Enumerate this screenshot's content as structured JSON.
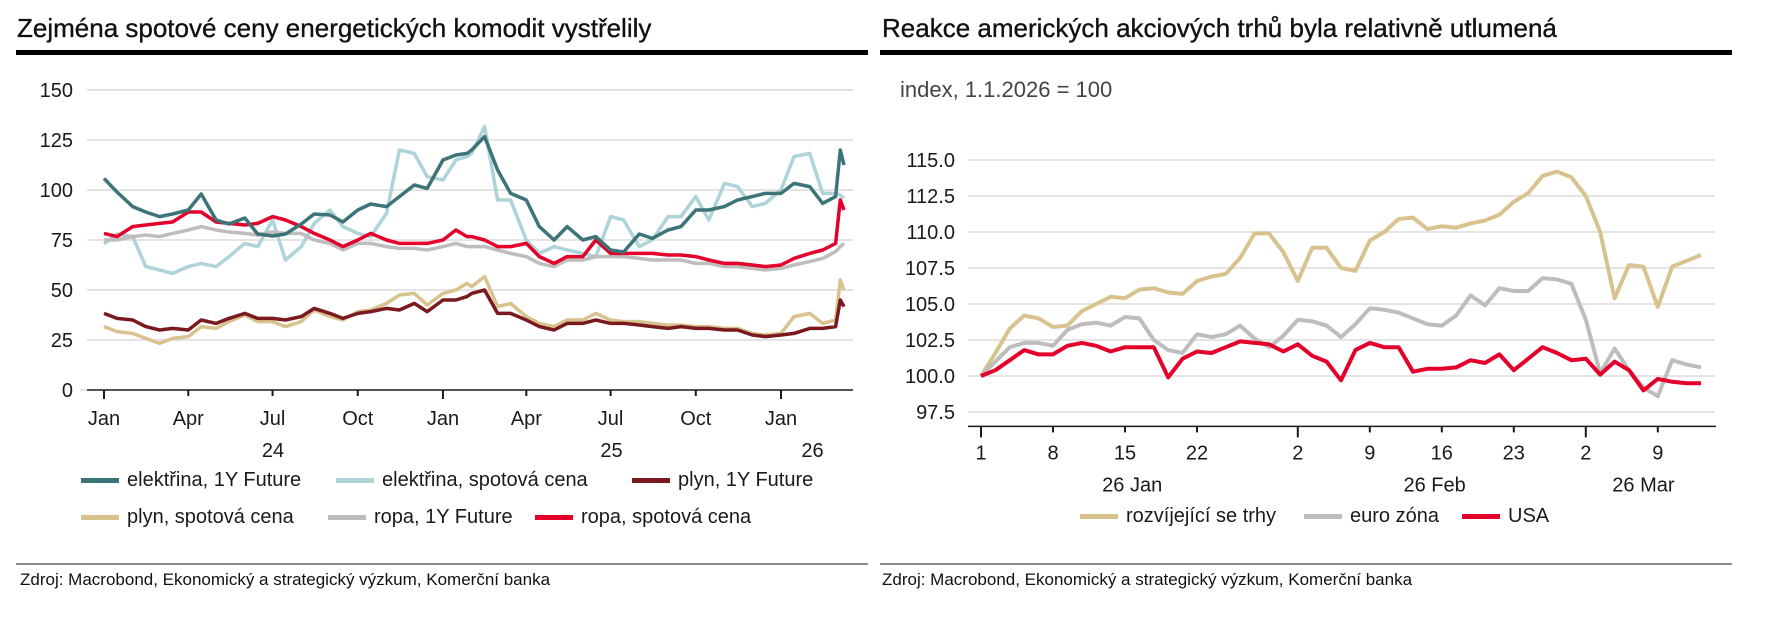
{
  "left": {
    "title": "Zejména spotové ceny energetických komodit vystřelily",
    "source": "Zdroj: Macrobond, Ekonomický a strategický výzkum, Komerční banka"
  },
  "right": {
    "title": "Reakce amerických akciových trhů byla relativně utlumená",
    "subtitle": "index, 1.1.2026 = 100",
    "source": "Zdroj: Macrobond, Ekonomický a strategický výzkum, Komerční banka"
  },
  "chart_data": [
    {
      "type": "line",
      "title": "Zejména spotové ceny energetických komodit vystřelily",
      "ylim": [
        0,
        150
      ],
      "yticks": [
        0,
        25,
        50,
        75,
        100,
        125,
        150
      ],
      "grid": true,
      "legend_placement": "bottom",
      "xticks": [
        {
          "date": "2024-01-01",
          "label": "Jan"
        },
        {
          "date": "2024-04-01",
          "label": "Apr"
        },
        {
          "date": "2024-07-01",
          "label": "Jul"
        },
        {
          "date": "2024-10-01",
          "label": "Oct"
        },
        {
          "date": "2025-01-01",
          "label": "Jan"
        },
        {
          "date": "2025-04-01",
          "label": "Apr"
        },
        {
          "date": "2025-07-01",
          "label": "Jul"
        },
        {
          "date": "2025-10-01",
          "label": "Oct"
        },
        {
          "date": "2026-01-01",
          "label": "Jan"
        }
      ],
      "year_labels": [
        {
          "year": 2024,
          "label": "24"
        },
        {
          "year": 2025,
          "label": "25"
        },
        {
          "year": 2026,
          "label": "26"
        }
      ],
      "x": [
        "2024-01-01",
        "2024-01-15",
        "2024-02-01",
        "2024-02-15",
        "2024-03-01",
        "2024-03-15",
        "2024-04-01",
        "2024-04-15",
        "2024-05-01",
        "2024-05-15",
        "2024-06-01",
        "2024-06-15",
        "2024-07-01",
        "2024-07-15",
        "2024-08-01",
        "2024-08-15",
        "2024-09-01",
        "2024-09-15",
        "2024-10-01",
        "2024-10-15",
        "2024-11-01",
        "2024-11-15",
        "2024-12-01",
        "2024-12-15",
        "2025-01-01",
        "2025-01-15",
        "2025-01-27",
        "2025-02-01",
        "2025-02-15",
        "2025-03-01",
        "2025-03-15",
        "2025-04-01",
        "2025-04-15",
        "2025-05-01",
        "2025-05-15",
        "2025-06-01",
        "2025-06-15",
        "2025-07-01",
        "2025-07-15",
        "2025-08-01",
        "2025-08-15",
        "2025-09-01",
        "2025-09-15",
        "2025-10-01",
        "2025-10-15",
        "2025-11-01",
        "2025-11-15",
        "2025-12-01",
        "2025-12-15",
        "2026-01-01",
        "2026-01-15",
        "2026-02-01",
        "2026-02-15",
        "2026-03-01",
        "2026-03-06",
        "2026-03-10"
      ],
      "series": [
        {
          "name": "elektřina, spotová cena",
          "color": "#aed3d8",
          "values": [
            73,
            78,
            76.7,
            61.7,
            60,
            58.3,
            61.7,
            63.3,
            61.7,
            66.7,
            73.3,
            71.7,
            85,
            65,
            71.7,
            83.3,
            90,
            81.7,
            78.3,
            76.7,
            88.3,
            120,
            118.3,
            106.7,
            105,
            115,
            116.7,
            118.3,
            131.7,
            95,
            95,
            75,
            68.3,
            71.7,
            70,
            68.3,
            66.7,
            86.7,
            85,
            71.7,
            75,
            86.7,
            86.7,
            96.7,
            85,
            103.3,
            101.7,
            91.7,
            93.3,
            100,
            116.7,
            118.3,
            98.3,
            98.3,
            97.5,
            95.8
          ]
        },
        {
          "name": "ropa, 1Y Future",
          "color": "#bfbcbc",
          "values": [
            75,
            75,
            76.7,
            77.5,
            76.7,
            78.3,
            80,
            81.7,
            80,
            79,
            78.3,
            77.5,
            79,
            78.3,
            78.3,
            75,
            73.3,
            70,
            73.3,
            73.3,
            71.7,
            70.8,
            70.8,
            70,
            71.7,
            73.3,
            71.7,
            71.7,
            71.7,
            70,
            68.3,
            66.7,
            63.3,
            61.7,
            65,
            65,
            66.7,
            66.7,
            66.7,
            65.8,
            65,
            65,
            65,
            63.3,
            63.3,
            61.7,
            61.7,
            60.8,
            60,
            60.8,
            62.5,
            64.2,
            65.8,
            69.2,
            71.7,
            73.3
          ]
        },
        {
          "name": "plyn, spotová cena",
          "color": "#d8c38f",
          "values": [
            31.7,
            29.2,
            28.3,
            25.8,
            23.3,
            25.8,
            26.7,
            31.7,
            30.8,
            34.2,
            37.5,
            34.2,
            34.2,
            31.7,
            34.2,
            40,
            36.7,
            35,
            39.2,
            40,
            43.3,
            47.5,
            48.3,
            42.5,
            48.3,
            50,
            53.3,
            51.7,
            56.7,
            41.7,
            43.3,
            36.7,
            33.3,
            31.7,
            35,
            35,
            38.3,
            35,
            34.2,
            34.2,
            33.3,
            32.5,
            32.5,
            31.7,
            31.7,
            30.8,
            30.8,
            28.3,
            27.5,
            28.3,
            36.7,
            38.3,
            33.3,
            35,
            55,
            50
          ]
        },
        {
          "name": "plyn, 1Y Future",
          "color": "#7a1a1f",
          "values": [
            38.3,
            35.8,
            35,
            31.7,
            30,
            30.8,
            30,
            35,
            33.3,
            35.8,
            38.3,
            35.8,
            35.8,
            35,
            36.7,
            40.8,
            38.3,
            35.8,
            38.3,
            39.2,
            40.8,
            40,
            43.3,
            39.2,
            45,
            45,
            46.7,
            48.3,
            50,
            38.3,
            38.3,
            35,
            31.7,
            30,
            33.3,
            33.3,
            35,
            33.3,
            33.3,
            32.5,
            31.7,
            30.8,
            31.7,
            30.8,
            30.8,
            30,
            30,
            27.5,
            26.7,
            27.5,
            28.3,
            30.8,
            30.8,
            31.7,
            45,
            41.7
          ]
        },
        {
          "name": "ropa, spotová cena",
          "color": "#e4002b",
          "values": [
            78.3,
            76.7,
            81.7,
            82.5,
            83.3,
            84,
            89,
            89,
            84,
            83.3,
            82.5,
            83.3,
            86.7,
            85,
            81.7,
            78.3,
            75,
            71.7,
            75,
            78.3,
            75,
            73.3,
            73.3,
            73.3,
            75,
            80,
            76.7,
            76.7,
            75,
            71.7,
            71.7,
            73.3,
            66.7,
            63.3,
            66.7,
            66.7,
            75,
            68.3,
            68.3,
            68.3,
            68.3,
            67.5,
            67.5,
            66.7,
            65,
            63.3,
            63.3,
            62.5,
            61.7,
            62.5,
            65.8,
            68.3,
            70,
            73.3,
            95,
            90
          ]
        },
        {
          "name": "elektřina, 1Y Future",
          "color": "#3d7478",
          "values": [
            105.8,
            99,
            91.7,
            89,
            86.7,
            88,
            90,
            98,
            85,
            83,
            86,
            78,
            77,
            78,
            83,
            88,
            87.5,
            84,
            90,
            93,
            91.7,
            96.7,
            102.5,
            100.8,
            115,
            117.5,
            118.3,
            120,
            126.7,
            110,
            98.3,
            95,
            81.7,
            75,
            81.7,
            75,
            76.7,
            70,
            69,
            78,
            75.8,
            80,
            81.7,
            90,
            90,
            91.7,
            95,
            96.7,
            98.3,
            98.3,
            103.3,
            101.7,
            93.3,
            96.7,
            120,
            112.5
          ]
        }
      ],
      "legend": [
        {
          "label": "elektřina, 1Y Future",
          "color": "#3d7478"
        },
        {
          "label": "elektřina, spotová cena",
          "color": "#aed3d8"
        },
        {
          "label": "plyn, 1Y Future",
          "color": "#7a1a1f"
        },
        {
          "label": "plyn, spotová cena",
          "color": "#d8c38f"
        },
        {
          "label": "ropa, 1Y Future",
          "color": "#bfbcbc"
        },
        {
          "label": "ropa, spotová cena",
          "color": "#e4002b"
        }
      ]
    },
    {
      "type": "line",
      "title": "Reakce amerických akciových trhů byla relativně utlumená",
      "subtitle": "index, 1.1.2026 = 100",
      "ylim": [
        96.5,
        115
      ],
      "yticks": [
        97.5,
        100,
        102.5,
        105,
        107.5,
        110,
        112.5,
        115
      ],
      "grid": true,
      "legend_placement": "bottom",
      "x_business_days_only": true,
      "x": [
        "2026-01-01",
        "2026-01-02",
        "2026-01-05",
        "2026-01-06",
        "2026-01-07",
        "2026-01-08",
        "2026-01-09",
        "2026-01-12",
        "2026-01-13",
        "2026-01-14",
        "2026-01-15",
        "2026-01-16",
        "2026-01-19",
        "2026-01-20",
        "2026-01-21",
        "2026-01-22",
        "2026-01-23",
        "2026-01-26",
        "2026-01-27",
        "2026-01-28",
        "2026-01-29",
        "2026-01-30",
        "2026-02-02",
        "2026-02-03",
        "2026-02-04",
        "2026-02-05",
        "2026-02-06",
        "2026-02-09",
        "2026-02-10",
        "2026-02-11",
        "2026-02-12",
        "2026-02-13",
        "2026-02-16",
        "2026-02-17",
        "2026-02-18",
        "2026-02-19",
        "2026-02-20",
        "2026-02-23",
        "2026-02-24",
        "2026-02-25",
        "2026-02-26",
        "2026-02-27",
        "2026-03-02",
        "2026-03-03",
        "2026-03-04",
        "2026-03-05",
        "2026-03-06",
        "2026-03-09",
        "2026-03-10",
        "2026-03-11",
        "2026-03-12"
      ],
      "xticks": [
        {
          "date": "2026-01-01",
          "label": "1",
          "major": true
        },
        {
          "date": "2026-01-08",
          "label": "8"
        },
        {
          "date": "2026-01-15",
          "label": "15"
        },
        {
          "date": "2026-01-22",
          "label": "22"
        },
        {
          "date": "2026-02-02",
          "label": "2",
          "major": true
        },
        {
          "date": "2026-02-09",
          "label": "9"
        },
        {
          "date": "2026-02-16",
          "label": "16"
        },
        {
          "date": "2026-02-23",
          "label": "23"
        },
        {
          "date": "2026-03-02",
          "label": "2",
          "major": true
        },
        {
          "date": "2026-03-09",
          "label": "9"
        }
      ],
      "month_labels": [
        {
          "month": "2026-01",
          "label": "26 Jan"
        },
        {
          "month": "2026-02",
          "label": "26 Feb"
        },
        {
          "month": "2026-03",
          "label": "26 Mar"
        }
      ],
      "series": [
        {
          "name": "rozvíjející se trhy",
          "color": "#d8c38f",
          "values": [
            100.0,
            101.6,
            103.3,
            104.2,
            104.0,
            103.4,
            103.5,
            104.5,
            105.0,
            105.5,
            105.4,
            106.0,
            106.1,
            105.8,
            105.7,
            106.6,
            106.9,
            107.1,
            108.2,
            109.9,
            109.9,
            108.6,
            106.6,
            108.9,
            108.9,
            107.5,
            107.3,
            109.4,
            110.0,
            110.9,
            111.0,
            110.2,
            110.4,
            110.3,
            110.6,
            110.8,
            111.2,
            112.1,
            112.7,
            113.9,
            114.2,
            113.8,
            112.5,
            110.0,
            105.4,
            107.7,
            107.6,
            104.8,
            107.6,
            108.0,
            108.4
          ]
        },
        {
          "name": "euro zóna",
          "color": "#bfbcbc",
          "values": [
            100.0,
            101.0,
            102.0,
            102.3,
            102.3,
            102.1,
            103.2,
            103.6,
            103.7,
            103.5,
            104.1,
            104.0,
            102.5,
            101.8,
            101.6,
            102.9,
            102.7,
            102.9,
            103.5,
            102.6,
            102.0,
            102.8,
            103.9,
            103.8,
            103.5,
            102.7,
            103.6,
            104.7,
            104.6,
            104.4,
            104.0,
            103.6,
            103.5,
            104.2,
            105.6,
            104.9,
            106.1,
            105.9,
            105.9,
            106.8,
            106.7,
            106.4,
            103.9,
            100.2,
            101.9,
            100.4,
            99.2,
            98.6,
            101.1,
            100.8,
            100.6
          ]
        },
        {
          "name": "USA",
          "color": "#e4002b",
          "values": [
            100.0,
            100.4,
            101.1,
            101.8,
            101.5,
            101.5,
            102.1,
            102.3,
            102.1,
            101.7,
            102.0,
            102.0,
            102.0,
            99.9,
            101.2,
            101.7,
            101.6,
            102.0,
            102.4,
            102.3,
            102.2,
            101.7,
            102.2,
            101.4,
            101.0,
            99.7,
            101.8,
            102.3,
            102.0,
            102.0,
            100.3,
            100.5,
            100.5,
            100.6,
            101.1,
            100.9,
            101.5,
            100.4,
            101.2,
            102.0,
            101.6,
            101.1,
            101.2,
            100.1,
            101.0,
            100.4,
            99.0,
            99.8,
            99.6,
            99.5,
            99.5
          ]
        }
      ],
      "legend": [
        {
          "label": "rozvíjející se trhy",
          "color": "#d8c38f"
        },
        {
          "label": "euro zóna",
          "color": "#bfbcbc"
        },
        {
          "label": "USA",
          "color": "#e4002b"
        }
      ]
    }
  ]
}
